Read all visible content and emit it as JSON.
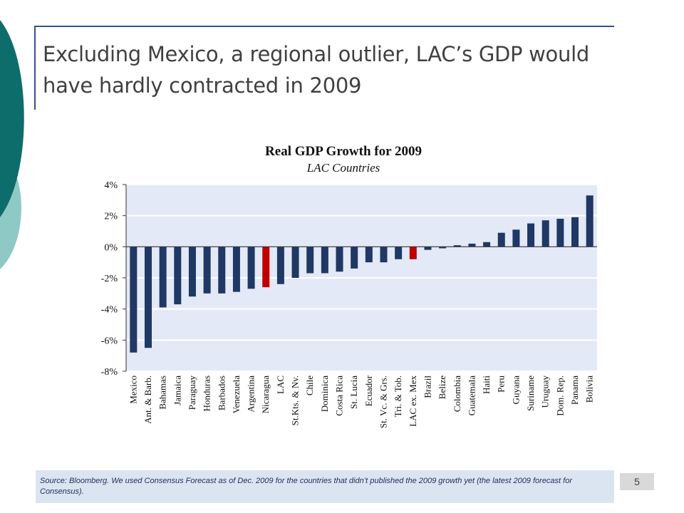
{
  "slide": {
    "title": "Excluding Mexico, a regional outlier, LAC’s GDP would have hardly contracted in 2009",
    "source": "Source: Bloomberg. We used Consensus Forecast as of Dec. 2009 for the countries that didn’t published the 2009 growth yet (the latest 2009 forecast for Consensus).",
    "page_number": "5"
  },
  "colors": {
    "bar": "#1f3864",
    "highlight": "#c00000",
    "plot_bg": "#e3e9f6",
    "teal_dark": "#0d6d6a",
    "teal_light": "#8fc9c6"
  },
  "chart_data": {
    "type": "bar",
    "title": "Real GDP Growth for 2009",
    "subtitle": "LAC Countries",
    "categories": [
      "Mexico",
      "Ant. & Barb.",
      "Bahamas",
      "Jamaica",
      "Paraguay",
      "Honduras",
      "Barbados",
      "Venezuela",
      "Argentina",
      "Nicaragua",
      "LAC",
      "St.Kts. & Nv.",
      "Chile",
      "Dominica",
      "Costa Rica",
      "St. Lucia",
      "Ecuador",
      "St. Vc. & Grs.",
      "Tri. & Tob.",
      "LAC ex. Mex",
      "Brazil",
      "Belize",
      "Colombia",
      "Guatemala",
      "Haiti",
      "Peru",
      "Guyana",
      "Suriname",
      "Uruguay",
      "Dom. Rep.",
      "Panama",
      "Bolivia"
    ],
    "values": [
      -6.8,
      -6.5,
      -3.9,
      -3.7,
      -3.2,
      -3.0,
      -3.0,
      -2.9,
      -2.7,
      -2.6,
      -2.4,
      -2.0,
      -1.7,
      -1.7,
      -1.6,
      -1.4,
      -1.0,
      -1.0,
      -0.8,
      -0.8,
      -0.2,
      -0.1,
      0.1,
      0.2,
      0.3,
      0.9,
      1.1,
      1.5,
      1.7,
      1.8,
      1.9,
      3.3
    ],
    "highlighted": [
      "Nicaragua",
      "LAC ex. Mex"
    ],
    "ylim": [
      -8,
      4
    ],
    "yticks": [
      "4%",
      "2%",
      "0%",
      "-2%",
      "-4%",
      "-6%",
      "-8%"
    ],
    "grid": true,
    "legend": "none"
  }
}
